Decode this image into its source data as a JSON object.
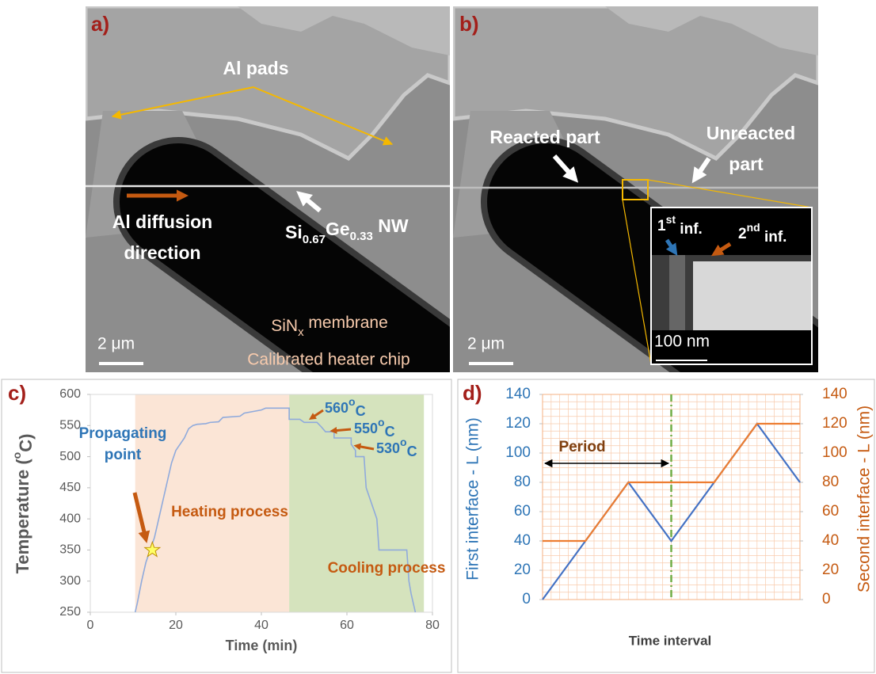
{
  "panels": {
    "a": {
      "label": "a)",
      "pads": "Al pads",
      "diffusion": [
        "Al diffusion",
        "direction"
      ],
      "nw": [
        "Si",
        "0.67",
        "Ge",
        "0.33",
        " NW"
      ],
      "scale": "2 μm",
      "membrane": [
        "SiN",
        "x",
        " membrane"
      ],
      "chip": "Calibrated heater chip"
    },
    "b": {
      "label": "b)",
      "reacted": "Reacted part",
      "unreacted": [
        "Unreacted",
        "part"
      ],
      "scale": "2 μm",
      "inset": {
        "first": [
          "1",
          "st",
          " inf."
        ],
        "second": [
          "2",
          "nd",
          " inf."
        ],
        "scale": "100 nm"
      }
    }
  },
  "chart_data": [
    {
      "type": "line",
      "label": "c)",
      "xlabel": "Time (min)",
      "ylabel": [
        "Temperature (",
        "o",
        "C)"
      ],
      "xlim": [
        0,
        80
      ],
      "xticks": [
        0,
        20,
        40,
        60,
        80
      ],
      "ylim": [
        250,
        600
      ],
      "yticks": [
        250,
        300,
        350,
        400,
        450,
        500,
        550,
        600
      ],
      "series": [
        {
          "color": "#8faadc",
          "x": [
            10.5,
            11,
            12,
            13,
            14,
            15,
            16,
            17,
            18,
            19,
            20,
            21,
            22,
            23,
            24,
            25,
            27,
            28,
            30,
            31,
            35,
            36,
            40,
            41,
            46.5,
            46.5,
            49,
            50,
            53,
            54,
            55,
            57,
            57,
            61,
            61,
            62,
            62,
            64,
            64.5,
            65,
            66,
            67,
            67.5,
            74,
            74.5,
            75,
            76
          ],
          "values": [
            250,
            265,
            300,
            330,
            350,
            370,
            400,
            430,
            460,
            490,
            510,
            520,
            530,
            545,
            550,
            552,
            553,
            555,
            556,
            563,
            565,
            570,
            575,
            578,
            578,
            560,
            560,
            555,
            555,
            548,
            540,
            540,
            530,
            530,
            520,
            510,
            500,
            500,
            450,
            440,
            420,
            400,
            350,
            350,
            300,
            280,
            250
          ]
        }
      ],
      "regions": [
        {
          "from": 10.5,
          "to": 46.5,
          "color": "#fbe5d6",
          "label": "Heating process"
        },
        {
          "from": 46.5,
          "to": 78,
          "color": "#d5e3bd",
          "label": "Cooling process"
        }
      ],
      "highlight": {
        "x": 14.5,
        "y": 350,
        "color": "#ffff66",
        "label": [
          "Propagating",
          "point"
        ]
      },
      "annotations": [
        [
          "560",
          "o",
          "C"
        ],
        [
          "550",
          "o",
          "C"
        ],
        [
          "530",
          "o",
          "C"
        ]
      ]
    },
    {
      "type": "line",
      "label": "d)",
      "xlabel": "Time interval",
      "ylabel": "First interface - L (nm)",
      "y2label": "Second interface - L (nm)",
      "xlim": [
        0,
        6
      ],
      "ylim": [
        0,
        140
      ],
      "yticks": [
        0,
        20,
        40,
        60,
        80,
        100,
        120,
        140
      ],
      "y2lim": [
        0,
        140
      ],
      "y2ticks": [
        0,
        20,
        40,
        60,
        80,
        100,
        120,
        140
      ],
      "ycolor": "#2e75b6",
      "y2color": "#c55a11",
      "minor_grid": true,
      "series": [
        {
          "color": "#4472c4",
          "x": [
            0,
            2,
            3,
            5,
            6
          ],
          "values": [
            0,
            80,
            40,
            120,
            80
          ]
        },
        {
          "color": "#ed7d31",
          "axis": "y2",
          "x": [
            0,
            1,
            2,
            4,
            5,
            6
          ],
          "values": [
            40,
            40,
            80,
            80,
            120,
            120
          ]
        }
      ],
      "vline": {
        "x": 3,
        "color": "#70ad47"
      },
      "period": "Period"
    }
  ]
}
